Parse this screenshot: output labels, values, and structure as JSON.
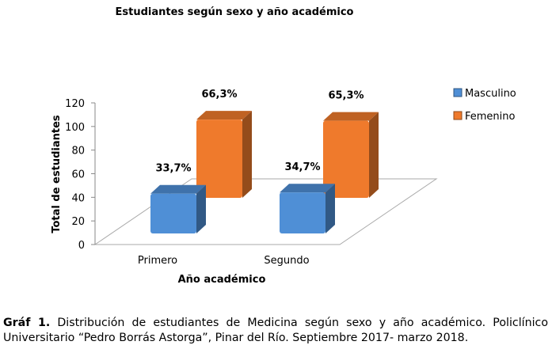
{
  "chart_data": {
    "type": "bar",
    "title": "Estudiantes según sexo y año académico",
    "xlabel": "Año académico",
    "ylabel": "Total de estudiantes",
    "categories": [
      "Primero",
      "Segundo"
    ],
    "series": [
      {
        "name": "Masculino",
        "values": [
          33.7,
          34.7
        ],
        "labels": [
          "33,7%",
          "34,7%"
        ],
        "color": "#4f8fd6"
      },
      {
        "name": "Femenino",
        "values": [
          66.3,
          65.3
        ],
        "labels": [
          "66,3%",
          "65,3%"
        ],
        "color": "#ef7a2c"
      }
    ],
    "ylim": [
      0,
      120
    ],
    "yticks": [
      "0",
      "20",
      "40",
      "60",
      "80",
      "100",
      "120"
    ],
    "legend_position": "right",
    "projection": "3d",
    "grid": false
  },
  "caption": {
    "label": "Gráf 1.",
    "text": "Distribución de estudiantes de Medicina según sexo y año académico. Policlínico Universitario “Pedro Borrás Astorga”, Pinar del Río. Septiembre 2017- marzo 2018."
  }
}
